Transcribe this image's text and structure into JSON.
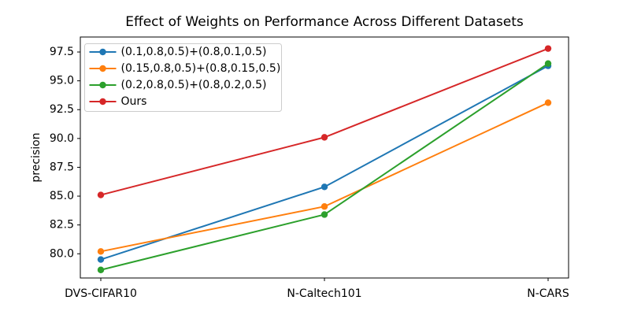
{
  "chart_data": {
    "type": "line",
    "title": "Effect of Weights on Performance Across Different Datasets",
    "xlabel": "",
    "ylabel": "precision",
    "categories": [
      "DVS-CIFAR10",
      "N-Caltech101",
      "N-CARS"
    ],
    "series": [
      {
        "name": "(0.1,0.8,0.5)+(0.8,0.1,0.5)",
        "color": "#1f77b4",
        "values": [
          79.5,
          85.8,
          96.3
        ]
      },
      {
        "name": "(0.15,0.8,0.5)+(0.8,0.15,0.5)",
        "color": "#ff7f0e",
        "values": [
          80.2,
          84.1,
          93.1
        ]
      },
      {
        "name": "(0.2,0.8,0.5)+(0.8,0.2,0.5)",
        "color": "#2ca02c",
        "values": [
          78.6,
          83.4,
          96.5
        ]
      },
      {
        "name": "Ours",
        "color": "#d62728",
        "values": [
          85.1,
          90.1,
          97.8
        ]
      }
    ],
    "yticks": [
      80.0,
      82.5,
      85.0,
      87.5,
      90.0,
      92.5,
      95.0,
      97.5
    ],
    "ylim": [
      77.9,
      98.8
    ],
    "marker": "o",
    "grid": false,
    "legend_position": "upper left",
    "axis_color": "#000000",
    "legend_border_color": "#cccccc"
  }
}
